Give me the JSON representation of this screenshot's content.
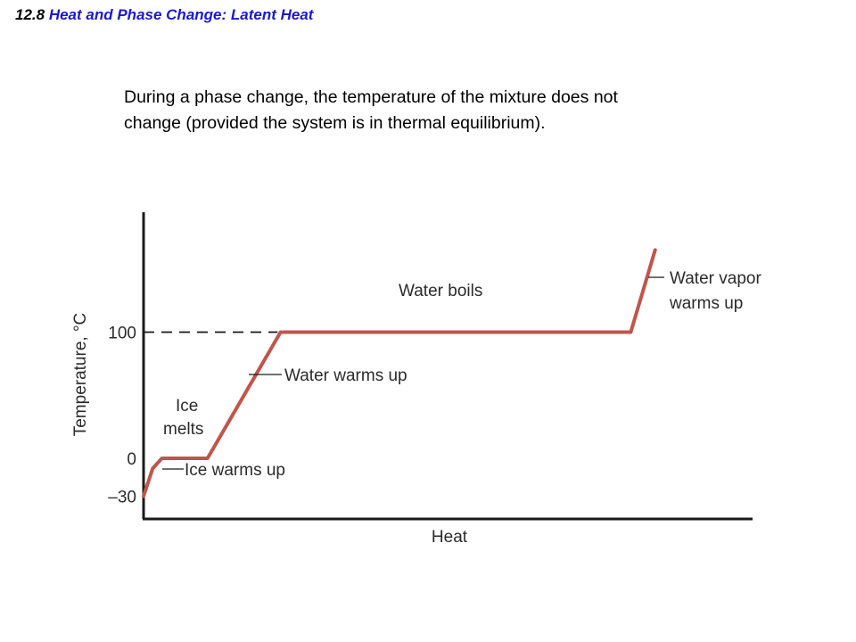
{
  "header": {
    "section_number": "12.8",
    "section_title": "Heat and Phase Change: Latent Heat"
  },
  "intro": {
    "line1": "During a phase change, the temperature of the mixture does not",
    "line2": "change (provided the system is in thermal equilibrium)."
  },
  "chart_data": {
    "type": "line",
    "title": "",
    "xlabel": "Heat",
    "ylabel": "Temperature, °C",
    "ytick_labels": [
      "100",
      "0",
      "–30"
    ],
    "ytick_values": [
      100,
      0,
      -30
    ],
    "ylim": [
      -48,
      195
    ],
    "xlim": [
      0,
      100
    ],
    "grid": false,
    "reference_lines": [
      {
        "y": 100,
        "style": "dashed",
        "x_start": 0,
        "x_end": 22
      }
    ],
    "series": [
      {
        "color": "#c0554a",
        "points": [
          [
            0,
            -30
          ],
          [
            1.5,
            -8
          ],
          [
            3,
            0
          ],
          [
            10.5,
            0
          ],
          [
            22.5,
            100
          ],
          [
            80,
            100
          ],
          [
            84,
            165
          ]
        ]
      }
    ],
    "annotations": [
      {
        "lines": [
          "Ice warms up"
        ],
        "x": 2.3,
        "y": -15
      },
      {
        "lines": [
          "Ice",
          "melts"
        ],
        "x": 7,
        "y": 0
      },
      {
        "lines": [
          "Water warms up"
        ],
        "x": 17.5,
        "y": 50
      },
      {
        "lines": [
          "Water boils"
        ],
        "x": 47,
        "y": 100
      },
      {
        "lines": [
          "Water vapor",
          "warms up"
        ],
        "x": 83,
        "y": 124
      }
    ],
    "colors": {
      "curve": "#c0554a",
      "axis": "#1a1a1a",
      "text": "#2b2b2b"
    }
  }
}
